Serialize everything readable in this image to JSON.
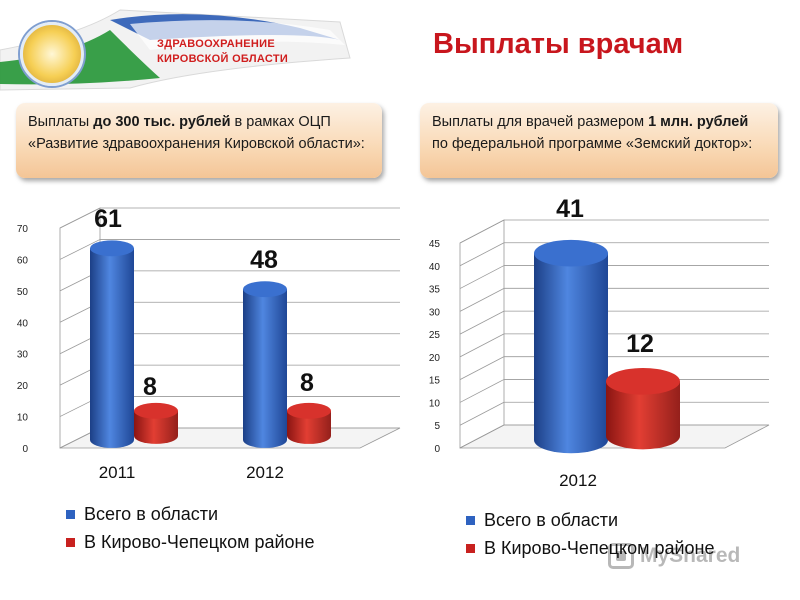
{
  "header": {
    "org_line1": "ЗДРАВООХРАНЕНИЕ",
    "org_line2": "КИРОВСКОЙ ОБЛАСТИ",
    "page_title": "Выплаты врачам",
    "logo_icon": "emblem-icon",
    "ribbon_colors": [
      "#ffffff",
      "#2e9a3f",
      "#2a5bb5"
    ]
  },
  "callouts": {
    "left": {
      "p1": "Выплаты ",
      "b1": "до 300 тыс. рублей",
      "p2": "  в рамках ОЦП «Развитие здравоохранения Кировской области»:"
    },
    "right": {
      "p1": "Выплаты  для врачей размером ",
      "b1": "1 млн. рублей",
      "p2": " по федеральной программе «Земский доктор»:"
    }
  },
  "watermark": {
    "text": "MyShared",
    "icon": "presentation-icon"
  },
  "chart_data": [
    {
      "type": "bar",
      "categories": [
        "2011",
        "2012"
      ],
      "series": [
        {
          "name": "Всего в области",
          "values": [
            61,
            48
          ],
          "color": "#2e62c0"
        },
        {
          "name": "В Кирово-Чепецком районе",
          "values": [
            8,
            8
          ],
          "color": "#c8211f"
        }
      ],
      "ylim": [
        0,
        70
      ],
      "yticks": [
        "0",
        "10",
        "20",
        "30",
        "40",
        "50",
        "60",
        "70"
      ],
      "grid": true,
      "legend": "bottom"
    },
    {
      "type": "bar",
      "categories": [
        "2012"
      ],
      "series": [
        {
          "name": "Всего в области",
          "values": [
            41
          ],
          "color": "#2e62c0"
        },
        {
          "name": "В Кирово-Чепецком районе",
          "values": [
            12
          ],
          "color": "#c8211f"
        }
      ],
      "ylim": [
        0,
        45
      ],
      "yticks": [
        "0",
        "5",
        "10",
        "15",
        "20",
        "25",
        "30",
        "35",
        "40",
        "45"
      ],
      "grid": true,
      "legend": "bottom"
    }
  ]
}
